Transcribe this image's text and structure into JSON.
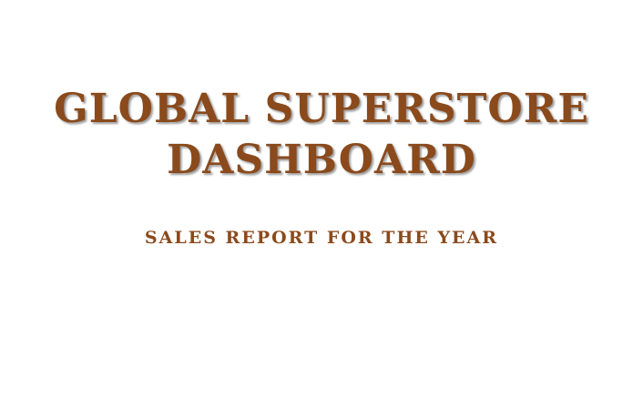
{
  "slide": {
    "title_line_1": "GLOBAL SUPERSTORE",
    "title_line_2": "DASHBOARD",
    "subtitle": "SALES REPORT FOR THE YEAR"
  },
  "colors": {
    "title_text": "#8a4a1c",
    "background": "#ffffff",
    "shadow": "#9a9a9a"
  }
}
